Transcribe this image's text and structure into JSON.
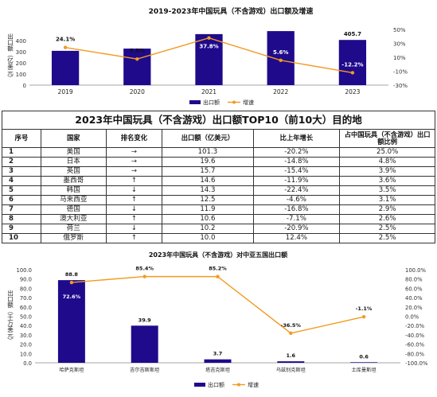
{
  "colors": {
    "bar": "#1f0a8c",
    "line": "#f39a1f",
    "grid": "#dddddd"
  },
  "chart_data": [
    {
      "type": "bar",
      "title": "2019-2023年中国玩具（不含游戏）出口额及增速",
      "ylabel": "出口额（亿美元）",
      "categories": [
        "2019",
        "2020",
        "2021",
        "2022",
        "2023"
      ],
      "ylim": [
        0,
        500
      ],
      "yticks": [
        "0",
        "100",
        "200",
        "300",
        "400"
      ],
      "y2lim": [
        -30,
        50
      ],
      "y2ticks": [
        "-30%",
        "-10%",
        "10%",
        "30%",
        "50%"
      ],
      "series": [
        {
          "name": "出口额",
          "type": "bar",
          "axis": "left",
          "values": [
            308,
            328,
            458,
            485,
            405.7
          ]
        },
        {
          "name": "增速",
          "type": "line",
          "axis": "right",
          "values": [
            24.1,
            7.5,
            37.8,
            5.6,
            -12.2
          ]
        }
      ],
      "bar_labels": [
        "",
        "",
        "",
        "",
        "405.7"
      ],
      "line_labels": [
        "24.1%",
        "7.5%",
        "37.8%",
        "5.6%",
        "-12.2%"
      ],
      "legend": [
        "出口额",
        "增速"
      ],
      "legend_position": "bottom"
    },
    {
      "type": "table",
      "title": "2023年中国玩具（不含游戏）出口额TOP10（前10大）目的地",
      "columns": [
        "序号",
        "国家",
        "排名变化",
        "出口额（亿美元）",
        "比上年增长",
        "占中国玩具（不含游戏）出口额比例"
      ],
      "rows": [
        [
          "1",
          "美国",
          "→",
          "101.3",
          "-20.2%",
          "25.0%"
        ],
        [
          "2",
          "日本",
          "→",
          "19.6",
          "-14.8%",
          "4.8%"
        ],
        [
          "3",
          "英国",
          "→",
          "15.7",
          "-15.4%",
          "3.9%"
        ],
        [
          "4",
          "墨西哥",
          "↑",
          "14.6",
          "-11.9%",
          "3.6%"
        ],
        [
          "5",
          "韩国",
          "↓",
          "14.3",
          "-22.4%",
          "3.5%"
        ],
        [
          "6",
          "马来西亚",
          "↑",
          "12.5",
          "-4.6%",
          "3.1%"
        ],
        [
          "7",
          "德国",
          "↓",
          "11.9",
          "-16.8%",
          "2.9%"
        ],
        [
          "8",
          "澳大利亚",
          "↑",
          "10.6",
          "-7.1%",
          "2.6%"
        ],
        [
          "9",
          "荷兰",
          "↓",
          "10.2",
          "-20.9%",
          "2.5%"
        ],
        [
          "10",
          "俄罗斯",
          "↑",
          "10.0",
          "12.4%",
          "2.5%"
        ]
      ]
    },
    {
      "type": "bar",
      "title": "2023年中国玩具（不含游戏）对中亚五国出口额",
      "ylabel": "出口额（千万美元）",
      "categories": [
        "哈萨克斯坦",
        "吉尔吉斯斯坦",
        "塔吉克斯坦",
        "乌兹别克斯坦",
        "土库曼斯坦"
      ],
      "ylim": [
        0,
        100
      ],
      "yticks": [
        "0.0",
        "10.0",
        "20.0",
        "30.0",
        "40.0",
        "50.0",
        "60.0",
        "70.0",
        "80.0",
        "90.0",
        "100.0"
      ],
      "y2lim": [
        -100,
        100
      ],
      "y2ticks": [
        "-100.0%",
        "-80.0%",
        "-60.0%",
        "-40.0%",
        "-20.0%",
        "0.0%",
        "20.0%",
        "40.0%",
        "60.0%",
        "80.0%",
        "100.0%"
      ],
      "series": [
        {
          "name": "出口额",
          "type": "bar",
          "axis": "left",
          "values": [
            88.8,
            39.9,
            3.7,
            1.6,
            0.6
          ]
        },
        {
          "name": "增速",
          "type": "line",
          "axis": "right",
          "values": [
            72.6,
            85.4,
            85.2,
            -36.5,
            -1.1
          ]
        }
      ],
      "bar_labels": [
        "88.8",
        "39.9",
        "3.7",
        "1.6",
        "0.6"
      ],
      "line_labels": [
        "72.6%",
        "85.4%",
        "85.2%",
        "-36.5%",
        "-1.1%"
      ],
      "legend": [
        "出口额",
        "增速"
      ],
      "legend_position": "bottom"
    }
  ]
}
